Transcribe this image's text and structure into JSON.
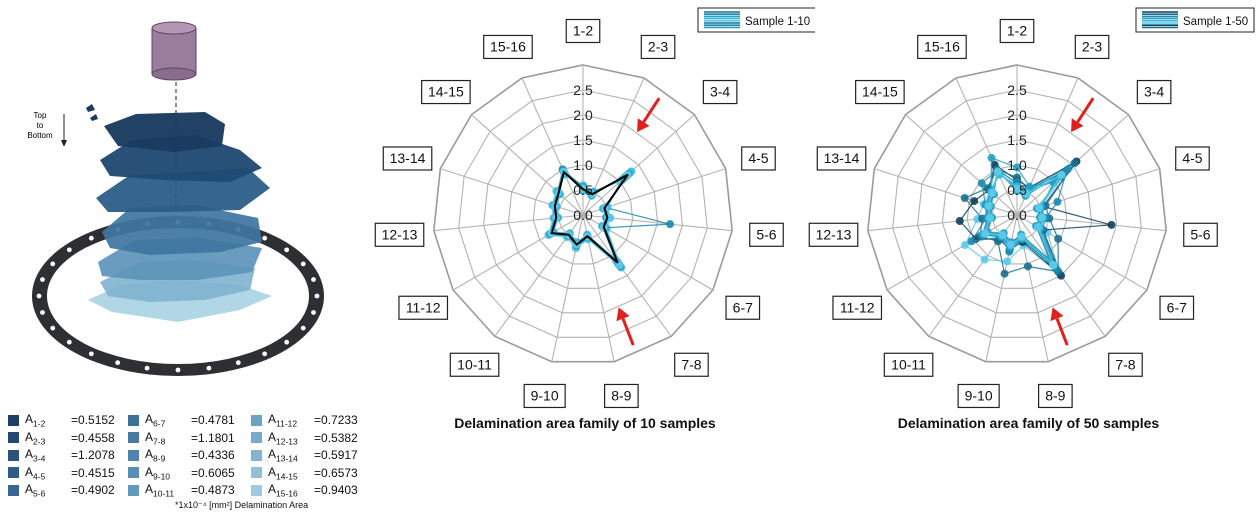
{
  "illustration": {
    "direction_label_lines": [
      "Top",
      "to",
      "Bottom"
    ]
  },
  "legend": {
    "items": [
      {
        "base": "A",
        "sub": "1-2",
        "value": "0.5152",
        "color": "#1f3f66"
      },
      {
        "base": "A",
        "sub": "2-3",
        "value": "0.4558",
        "color": "#244870"
      },
      {
        "base": "A",
        "sub": "3-4",
        "value": "1.2078",
        "color": "#2a527b"
      },
      {
        "base": "A",
        "sub": "4-5",
        "value": "0.4515",
        "color": "#315c86"
      },
      {
        "base": "A",
        "sub": "5-6",
        "value": "0.4902",
        "color": "#376690"
      },
      {
        "base": "A",
        "sub": "6-7",
        "value": "0.4781",
        "color": "#3e709a"
      },
      {
        "base": "A",
        "sub": "7-8",
        "value": "1.1801",
        "color": "#467aa3"
      },
      {
        "base": "A",
        "sub": "8-9",
        "value": "0.4336",
        "color": "#4e84ac"
      },
      {
        "base": "A",
        "sub": "9-10",
        "value": "0.6065",
        "color": "#578eb4"
      },
      {
        "base": "A",
        "sub": "10-11",
        "value": "0.4873",
        "color": "#6198bc"
      },
      {
        "base": "A",
        "sub": "11-12",
        "value": "0.7233",
        "color": "#6ca2c4"
      },
      {
        "base": "A",
        "sub": "12-13",
        "value": "0.5382",
        "color": "#77abcb"
      },
      {
        "base": "A",
        "sub": "13-14",
        "value": "0.5917",
        "color": "#83b5d2"
      },
      {
        "base": "A",
        "sub": "14-15",
        "value": "0.6573",
        "color": "#90bfd8"
      },
      {
        "base": "A",
        "sub": "15-16",
        "value": "0.9403",
        "color": "#9ec9de"
      }
    ],
    "note": "*1x10⁻⁴ [mm²] Delamination Area"
  },
  "chart_data": [
    {
      "type": "radar",
      "title": "Delamination area family of 10 samples",
      "legend_label": "Sample 1-10",
      "axes": [
        "1-2",
        "2-3",
        "3-4",
        "4-5",
        "5-6",
        "6-7",
        "7-8",
        "8-9",
        "9-10",
        "10-11",
        "11-12",
        "12-13",
        "13-14",
        "14-15",
        "15-16"
      ],
      "rticks": [
        "0.0",
        "0.5",
        "1.0",
        "1.5",
        "2.0",
        "2.5"
      ],
      "rlim": [
        0,
        3
      ],
      "arrow_axes": [
        "3-4",
        "7-8"
      ],
      "reference_series": [
        0.5152,
        0.4558,
        1.2078,
        0.4515,
        0.4902,
        0.4781,
        1.1801,
        0.4336,
        0.6065,
        0.4873,
        0.7233,
        0.5382,
        0.5917,
        0.6573,
        0.9403
      ],
      "series": [
        {
          "values": [
            0.55,
            0.48,
            1.15,
            0.46,
            0.5,
            0.5,
            1.2,
            0.45,
            0.62,
            0.5,
            0.75,
            0.55,
            0.6,
            0.66,
            0.92
          ]
        },
        {
          "values": [
            0.5,
            0.44,
            1.25,
            0.44,
            0.48,
            0.46,
            1.15,
            0.42,
            0.58,
            0.47,
            0.7,
            0.52,
            0.57,
            0.64,
            0.96
          ]
        },
        {
          "values": [
            0.58,
            0.5,
            1.05,
            0.5,
            0.52,
            0.52,
            1.25,
            0.48,
            0.65,
            0.52,
            0.78,
            0.58,
            0.63,
            0.7,
            0.9
          ]
        },
        {
          "values": [
            0.48,
            0.42,
            1.3,
            0.42,
            0.46,
            0.44,
            1.1,
            0.4,
            0.56,
            0.45,
            0.68,
            0.5,
            0.55,
            0.62,
            0.98
          ]
        },
        {
          "values": [
            0.6,
            0.52,
            1.0,
            0.52,
            0.55,
            0.55,
            1.3,
            0.5,
            0.68,
            0.55,
            0.8,
            0.6,
            0.65,
            0.72,
            0.88
          ]
        },
        {
          "values": [
            0.53,
            0.46,
            1.18,
            0.47,
            0.49,
            0.49,
            1.22,
            0.44,
            0.6,
            0.49,
            0.72,
            0.54,
            0.59,
            0.65,
            0.94
          ]
        },
        {
          "values": [
            0.56,
            0.49,
            1.1,
            0.48,
            1.75,
            0.51,
            1.18,
            0.46,
            0.63,
            0.51,
            0.76,
            0.56,
            0.61,
            0.68,
            1.0
          ]
        },
        {
          "values": [
            0.51,
            0.45,
            1.22,
            0.45,
            0.47,
            0.47,
            1.28,
            0.43,
            0.59,
            0.48,
            0.71,
            0.53,
            0.58,
            0.64,
            0.93
          ]
        },
        {
          "values": [
            0.54,
            0.47,
            1.12,
            0.49,
            0.51,
            0.5,
            1.16,
            0.45,
            0.61,
            0.5,
            0.74,
            0.55,
            0.6,
            0.67,
            0.91
          ]
        },
        {
          "values": [
            0.52,
            0.46,
            1.2,
            0.46,
            0.5,
            0.48,
            1.24,
            0.44,
            0.6,
            0.49,
            0.73,
            0.54,
            0.59,
            0.66,
            0.95
          ]
        }
      ],
      "colors": {
        "series": [
          "#1b6f8f",
          "#1e88ad",
          "#23a0c8",
          "#3bb8df",
          "#5ccbe8"
        ],
        "reference": "#000000",
        "arrow": "#e0201b"
      }
    },
    {
      "type": "radar",
      "title": "Delamination area family of 50 samples",
      "legend_label": "Sample 1-50",
      "axes": [
        "1-2",
        "2-3",
        "3-4",
        "4-5",
        "5-6",
        "6-7",
        "7-8",
        "8-9",
        "9-10",
        "10-11",
        "11-12",
        "12-13",
        "13-14",
        "14-15",
        "15-16"
      ],
      "rticks": [
        "0.0",
        "0.5",
        "1.0",
        "1.5",
        "2.0",
        "2.5"
      ],
      "rlim": [
        0,
        3
      ],
      "arrow_axes": [
        "3-4",
        "7-8"
      ],
      "series": [
        {
          "values": [
            0.55,
            0.48,
            1.15,
            0.46,
            0.5,
            0.5,
            1.2,
            0.45,
            0.62,
            0.5,
            0.75,
            0.55,
            0.6,
            0.66,
            0.92
          ]
        },
        {
          "values": [
            0.5,
            0.44,
            1.25,
            0.44,
            0.48,
            0.46,
            1.15,
            0.42,
            0.58,
            0.47,
            0.7,
            0.52,
            0.57,
            0.64,
            0.96
          ]
        },
        {
          "values": [
            0.58,
            0.5,
            1.05,
            0.5,
            0.52,
            0.52,
            1.25,
            0.48,
            0.65,
            0.52,
            0.78,
            0.58,
            0.63,
            0.7,
            0.9
          ]
        },
        {
          "values": [
            0.48,
            0.42,
            1.3,
            0.42,
            0.46,
            0.44,
            1.1,
            0.4,
            0.56,
            0.45,
            0.68,
            0.5,
            0.55,
            0.62,
            0.98
          ]
        },
        {
          "values": [
            0.6,
            0.52,
            1.0,
            0.52,
            0.55,
            0.55,
            1.3,
            0.5,
            0.68,
            0.55,
            0.8,
            0.6,
            0.65,
            0.72,
            0.88
          ]
        },
        {
          "values": [
            0.62,
            0.55,
            1.4,
            0.48,
            0.6,
            0.7,
            1.45,
            0.62,
            0.95,
            1.1,
            1.2,
            0.8,
            0.7,
            0.72,
            1.05
          ]
        },
        {
          "values": [
            0.7,
            0.6,
            1.6,
            0.55,
            1.9,
            0.6,
            1.5,
            0.55,
            0.7,
            0.6,
            0.95,
            1.15,
            0.9,
            0.75,
            1.1
          ]
        },
        {
          "values": [
            0.75,
            0.58,
            1.55,
            0.6,
            0.65,
            0.95,
            1.4,
            1.05,
            1.2,
            0.65,
            0.85,
            0.7,
            1.1,
            0.8,
            1.0
          ]
        },
        {
          "values": [
            0.65,
            0.53,
            1.35,
            0.85,
            0.58,
            0.58,
            1.35,
            0.5,
            0.75,
            0.55,
            1.05,
            0.62,
            0.66,
            0.95,
            0.97
          ]
        },
        {
          "values": [
            0.95,
            0.62,
            0.98,
            0.52,
            0.53,
            0.52,
            1.25,
            0.48,
            0.66,
            0.53,
            0.79,
            0.58,
            0.65,
            0.7,
            1.25
          ]
        },
        {
          "values": [
            0.57,
            0.49,
            1.18,
            0.47,
            0.51,
            0.52,
            1.22,
            0.46,
            0.63,
            0.51,
            0.76,
            0.56,
            0.61,
            0.68,
            0.93
          ]
        },
        {
          "values": [
            0.52,
            0.46,
            1.2,
            0.46,
            0.5,
            0.48,
            1.24,
            0.44,
            0.6,
            0.49,
            0.73,
            0.54,
            0.59,
            0.66,
            0.95
          ]
        }
      ],
      "colors": {
        "series": [
          "#123f5c",
          "#1b6f8f",
          "#1e88ad",
          "#23a0c8",
          "#3bb8df",
          "#5ccbe8"
        ],
        "arrow": "#e0201b"
      }
    }
  ]
}
